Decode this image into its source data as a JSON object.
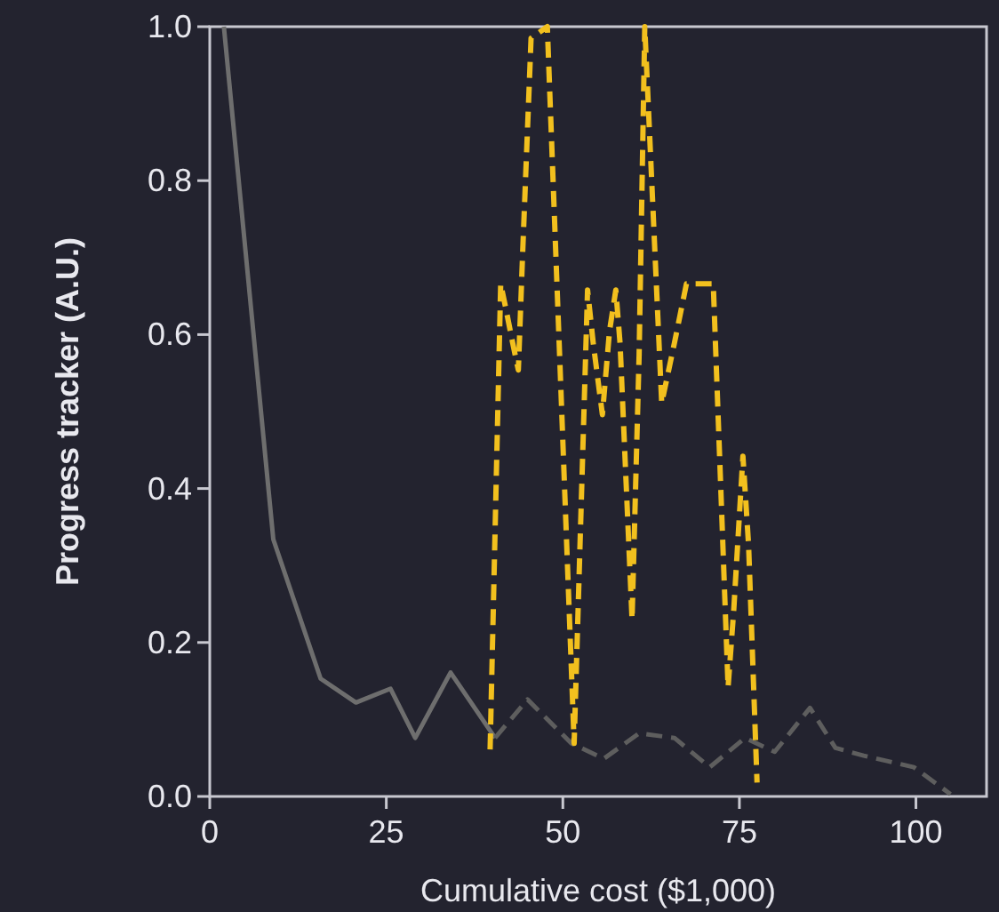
{
  "chart_data": {
    "type": "line",
    "xlabel": "Cumulative cost ($1,000)",
    "ylabel": "Progress tracker (A.U.)",
    "xlim": [
      0,
      110
    ],
    "ylim": [
      0,
      1
    ],
    "xticks": [
      0,
      25,
      50,
      75,
      100
    ],
    "yticks": [
      {
        "value": 0,
        "label": "0.0"
      },
      {
        "value": 0.2,
        "label": "0.2"
      },
      {
        "value": 0.4,
        "label": "0.4"
      },
      {
        "value": 0.6,
        "label": "0.6"
      },
      {
        "value": 0.8,
        "label": "0.8"
      },
      {
        "value": 1,
        "label": "1.0"
      }
    ],
    "grid": false,
    "marker": "none",
    "series": [
      {
        "color": "#6e6e6e",
        "line_style": "solid",
        "x": [
          2,
          9,
          15.7,
          20.7,
          25.6,
          29.1,
          34.1,
          40.4
        ],
        "values": [
          1.0,
          0.334,
          0.153,
          0.122,
          0.14,
          0.076,
          0.161,
          0.076
        ]
      },
      {
        "color": "#5e5e5e",
        "line_style": "dashed",
        "x": [
          40.4,
          45,
          51.2,
          55.8,
          60.8,
          65.8,
          70.8,
          75.8,
          80,
          85,
          88.6,
          92.6,
          99.7,
          104.9
        ],
        "values": [
          0.076,
          0.126,
          0.069,
          0.049,
          0.082,
          0.076,
          0.038,
          0.076,
          0.058,
          0.115,
          0.063,
          0.053,
          0.038,
          0.003
        ]
      },
      {
        "color": "#f2c01e",
        "line_style": "dashed",
        "x": [
          39.7,
          41.2,
          41.9,
          42.9,
          43.7,
          44.3,
          45.5,
          47.8,
          51.6,
          53.5,
          54.3,
          55.6,
          56.6,
          57.5,
          58.1,
          59.8,
          60.8,
          61.6,
          64,
          65.8,
          67.5,
          71.3,
          73.4,
          74.2,
          75.5,
          76.3,
          77.5
        ],
        "values": [
          0.061,
          0.666,
          0.635,
          0.589,
          0.554,
          0.704,
          0.985,
          1.0,
          0.069,
          0.658,
          0.589,
          0.496,
          0.604,
          0.658,
          0.589,
          0.23,
          0.573,
          1.0,
          0.511,
          0.589,
          0.666,
          0.666,
          0.142,
          0.242,
          0.442,
          0.327,
          0.018
        ]
      }
    ]
  }
}
